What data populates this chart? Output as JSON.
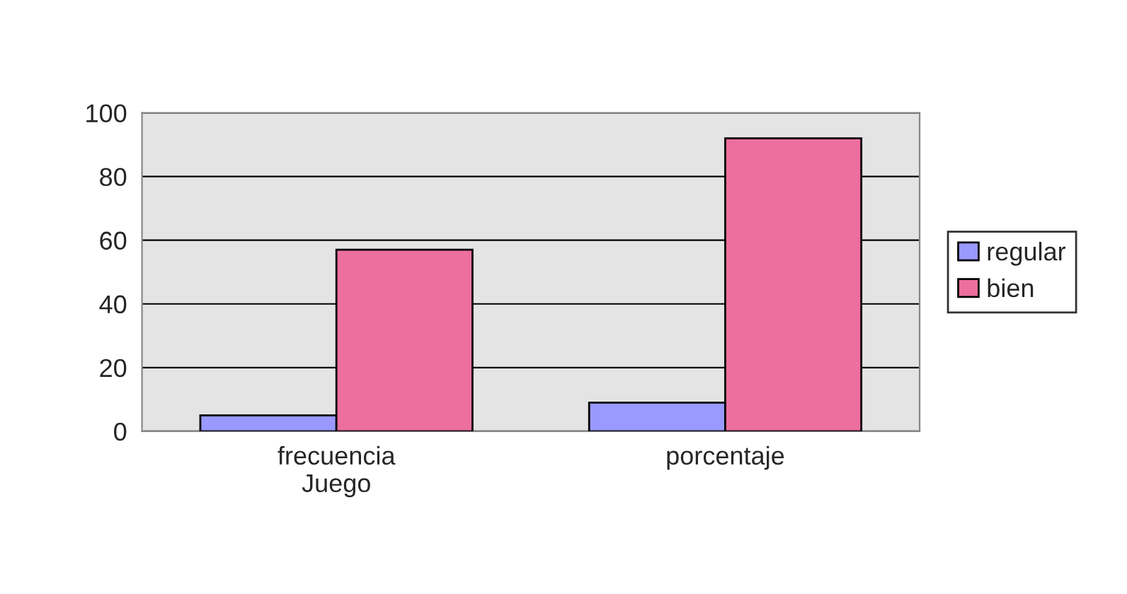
{
  "chart_data": {
    "type": "bar",
    "categories": [
      "frecuencia\nJuego",
      "porcentaje"
    ],
    "series": [
      {
        "name": "regular",
        "color": "#9999ff",
        "values": [
          5,
          9
        ]
      },
      {
        "name": "bien",
        "color": "#ec6f9e",
        "values": [
          57,
          92
        ]
      }
    ],
    "ylim": [
      0,
      100
    ],
    "yticks": [
      0,
      20,
      40,
      60,
      80,
      100
    ],
    "grid": "y",
    "legend": "right"
  }
}
